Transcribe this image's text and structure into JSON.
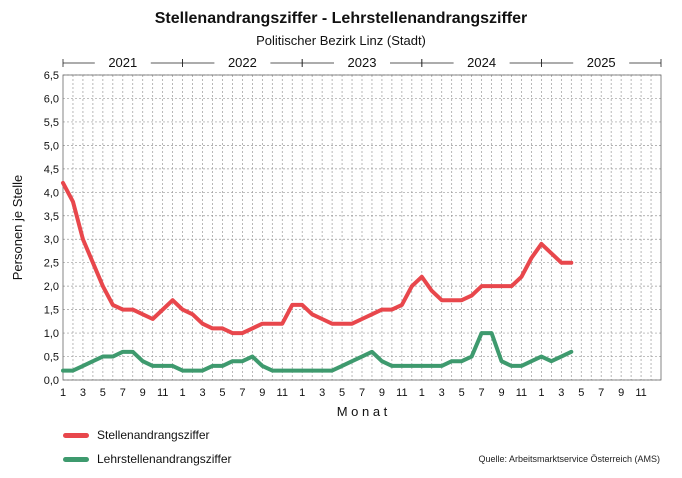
{
  "chart_data": {
    "type": "line",
    "title": "Stellenandrangsziffer - Lehrstellenandrangsziffer",
    "subtitle": "Politischer Bezirk Linz (Stadt)",
    "xlabel": "M o n a t",
    "ylabel": "Personen je Stelle",
    "ylim": [
      0,
      6.5
    ],
    "yticks": [
      "0,0",
      "0,5",
      "1,0",
      "1,5",
      "2,0",
      "2,5",
      "3,0",
      "3,5",
      "4,0",
      "4,5",
      "5,0",
      "5,5",
      "6,0",
      "6,5"
    ],
    "years": [
      "2021",
      "2022",
      "2023",
      "2024",
      "2025"
    ],
    "month_tick_labels": [
      "1",
      "3",
      "5",
      "7",
      "9",
      "11"
    ],
    "months_total": 60,
    "series": [
      {
        "name": "Stellenandrangsziffer",
        "color": "#e8474c",
        "values": [
          4.2,
          3.8,
          3.0,
          2.5,
          2.0,
          1.6,
          1.5,
          1.5,
          1.4,
          1.3,
          1.5,
          1.7,
          1.5,
          1.4,
          1.2,
          1.1,
          1.1,
          1.0,
          1.0,
          1.1,
          1.2,
          1.2,
          1.2,
          1.6,
          1.6,
          1.4,
          1.3,
          1.2,
          1.2,
          1.2,
          1.3,
          1.4,
          1.5,
          1.5,
          1.6,
          2.0,
          2.2,
          1.9,
          1.7,
          1.7,
          1.7,
          1.8,
          2.0,
          2.0,
          2.0,
          2.0,
          2.2,
          2.6,
          2.9,
          2.7,
          2.5,
          2.5
        ]
      },
      {
        "name": "Lehrstellenandrangsziffer",
        "color": "#3e9a6e",
        "values": [
          0.2,
          0.2,
          0.3,
          0.4,
          0.5,
          0.5,
          0.6,
          0.6,
          0.4,
          0.3,
          0.3,
          0.3,
          0.2,
          0.2,
          0.2,
          0.3,
          0.3,
          0.4,
          0.4,
          0.5,
          0.3,
          0.2,
          0.2,
          0.2,
          0.2,
          0.2,
          0.2,
          0.2,
          0.3,
          0.4,
          0.5,
          0.6,
          0.4,
          0.3,
          0.3,
          0.3,
          0.3,
          0.3,
          0.3,
          0.4,
          0.4,
          0.5,
          1.0,
          1.0,
          0.4,
          0.3,
          0.3,
          0.4,
          0.5,
          0.4,
          0.5,
          0.6
        ]
      }
    ],
    "source": "Quelle: Arbeitsmarktservice Österreich (AMS)"
  }
}
